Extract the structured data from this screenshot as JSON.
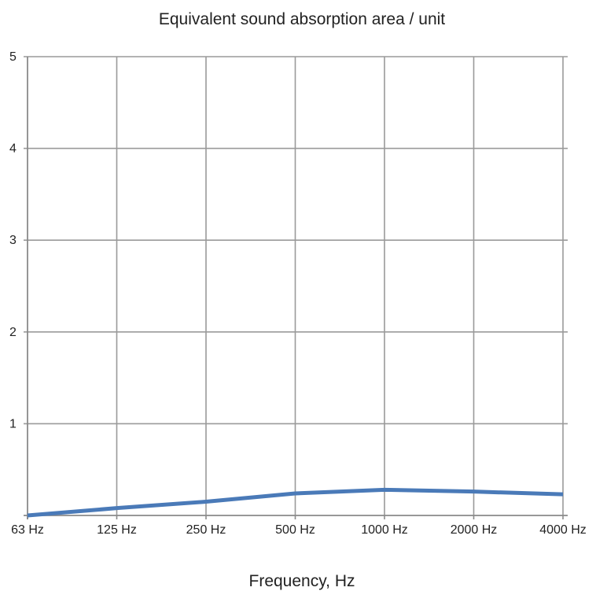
{
  "chart_data": {
    "type": "line",
    "title": "Equivalent sound absorption area / unit",
    "xlabel": "Frequency, Hz",
    "ylabel": "",
    "categories": [
      "63 Hz",
      "125 Hz",
      "250 Hz",
      "500 Hz",
      "1000 Hz",
      "2000 Hz",
      "4000 Hz"
    ],
    "ylim": [
      0,
      5
    ],
    "yticks": [
      "1",
      "2",
      "3",
      "4",
      "5"
    ],
    "grid": true,
    "series": [
      {
        "values": [
          0.0,
          0.08,
          0.15,
          0.24,
          0.28,
          0.26,
          0.23
        ],
        "color": "#4a7ab8"
      }
    ]
  }
}
